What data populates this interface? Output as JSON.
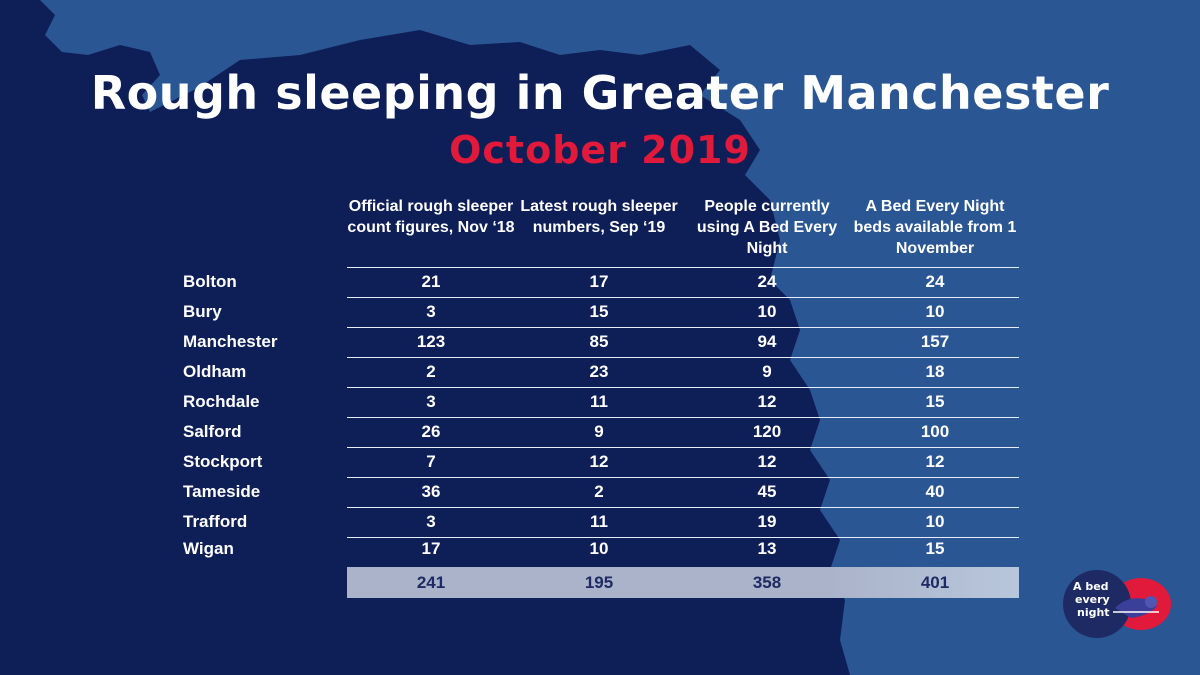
{
  "colors": {
    "dark_navy": "#0e1e57",
    "mid_blue": "#2a5693",
    "accent_red": "#e11a3b",
    "total_bar": "#aab3c9"
  },
  "chart_data": {
    "type": "table",
    "title": "Rough sleeping in Greater Manchester",
    "subtitle": "October 2019",
    "columns": [
      "Official rough sleeper count figures, Nov ‘18",
      "Latest rough sleeper numbers, Sep ‘19",
      "People currently using A Bed Every Night",
      "A Bed Every Night beds available from 1 November"
    ],
    "rows": [
      {
        "label": "Bolton",
        "values": [
          21,
          17,
          24,
          24
        ]
      },
      {
        "label": "Bury",
        "values": [
          3,
          15,
          10,
          10
        ]
      },
      {
        "label": "Manchester",
        "values": [
          123,
          85,
          94,
          157
        ]
      },
      {
        "label": "Oldham",
        "values": [
          2,
          23,
          9,
          18
        ]
      },
      {
        "label": "Rochdale",
        "values": [
          3,
          11,
          12,
          15
        ]
      },
      {
        "label": "Salford",
        "values": [
          26,
          9,
          120,
          100
        ]
      },
      {
        "label": "Stockport",
        "values": [
          7,
          12,
          12,
          12
        ]
      },
      {
        "label": "Tameside",
        "values": [
          36,
          2,
          45,
          40
        ]
      },
      {
        "label": "Trafford",
        "values": [
          3,
          11,
          19,
          10
        ]
      },
      {
        "label": "Wigan",
        "values": [
          17,
          10,
          13,
          15
        ]
      }
    ],
    "totals": [
      241,
      195,
      358,
      401
    ]
  },
  "logo": {
    "text_lines": [
      "A bed",
      "every",
      "night"
    ],
    "icon": "sleeping-figure-icon"
  }
}
